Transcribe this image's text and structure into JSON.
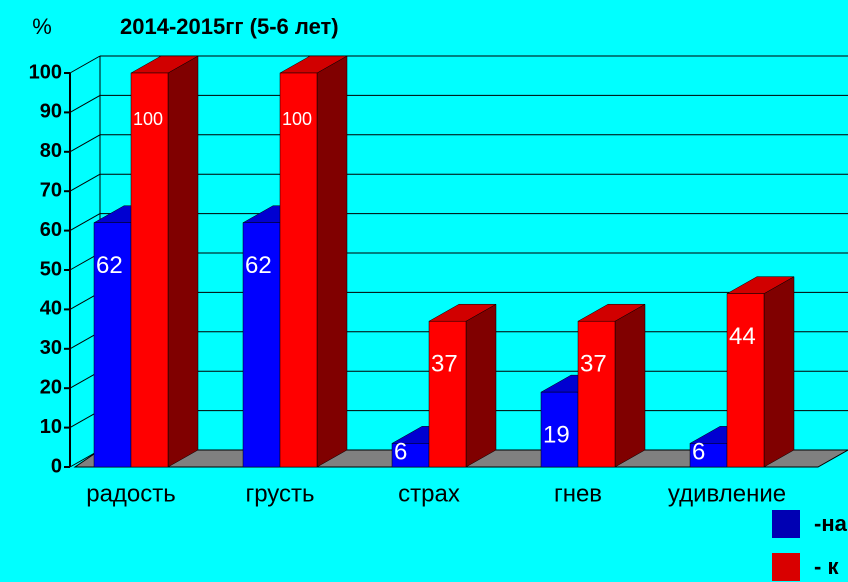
{
  "chart_data": {
    "type": "bar",
    "title": "2014-2015гг (5-6 лет)",
    "ylabel": "%",
    "categories": [
      "радость",
      "грусть",
      "страх",
      "гнев",
      "удивление"
    ],
    "series": [
      {
        "name": "-на",
        "color": "#0000ff",
        "values": [
          62,
          62,
          6,
          19,
          6
        ]
      },
      {
        "name": "- к",
        "color": "#ff0000",
        "values": [
          100,
          100,
          37,
          37,
          44
        ]
      }
    ],
    "ylim": [
      0,
      100
    ],
    "yticks": [
      0,
      10,
      20,
      30,
      40,
      50,
      60,
      70,
      80,
      90,
      100
    ],
    "grid": true
  }
}
